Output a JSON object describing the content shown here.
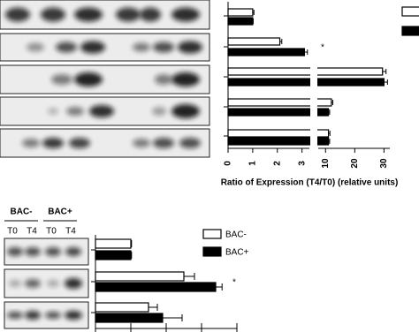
{
  "chart_data": [
    {
      "type": "hbar",
      "xlabel": "Ratio of Expression (T4/T0) (relative units)",
      "xlim": [
        0,
        3.3
      ],
      "xticks": [
        0,
        1,
        2,
        3
      ],
      "x2lim": [
        7.5,
        32
      ],
      "x2ticks": [
        10,
        20,
        30
      ],
      "series": [
        {
          "color": "#ffffff",
          "values": [
            1.0,
            2.1,
            29.5,
            12,
            11
          ],
          "errors": [
            0.05,
            0.08,
            1.2,
            0.5,
            0.5
          ]
        },
        {
          "color": "#000000",
          "values": [
            1.0,
            3.1,
            30,
            11,
            11
          ],
          "errors": [
            0.02,
            0.12,
            1.2,
            0.4,
            0.4
          ]
        }
      ],
      "annotations": [
        "*"
      ]
    },
    {
      "type": "hbar",
      "groups": [
        "BAC-",
        "BAC+"
      ],
      "lanes": [
        "T0",
        "T4",
        "T0",
        "T4"
      ],
      "xlim": [
        0,
        4
      ],
      "xticks": [
        0,
        1,
        2,
        3,
        4
      ],
      "series": [
        {
          "name": "BAC-",
          "color": "#ffffff",
          "values": [
            1.0,
            2.5,
            1.5
          ],
          "errors": [
            0.02,
            0.3,
            0.25
          ]
        },
        {
          "name": "BAC+",
          "color": "#000000",
          "values": [
            1.0,
            3.4,
            1.9
          ],
          "errors": [
            0.02,
            0.18,
            0.55
          ]
        }
      ],
      "annotations": [
        "*"
      ]
    }
  ]
}
